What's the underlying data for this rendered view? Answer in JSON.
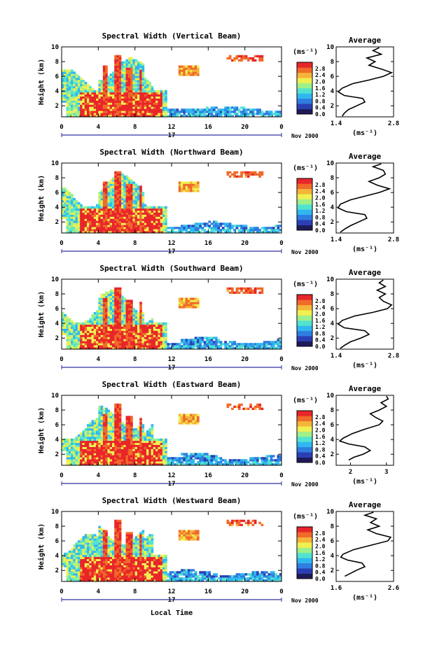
{
  "figure": {
    "xlabel": "Local Time",
    "date_label": "Nov 2000",
    "day_label": "17",
    "avg_title": "Average",
    "avg_xlabel": "(ms⁻¹)",
    "ylabel": "Height (km)",
    "colorbar_unit": "(ms⁻¹)",
    "colorbar_ticks": [
      "0.0",
      "0.4",
      "0.8",
      "1.2",
      "1.6",
      "2.0",
      "2.4",
      "2.8"
    ],
    "colormap": [
      "#1e1b5a",
      "#2b3fb4",
      "#2f7de0",
      "#31b7ef",
      "#52e3d0",
      "#9ff08a",
      "#f0f050",
      "#f5b43a",
      "#f06a2a",
      "#e8262a"
    ]
  },
  "chart_data": [
    {
      "type": "heatmap",
      "title": "Spectral Width (Vertical Beam)",
      "x_ticks": [
        "0",
        "4",
        "8",
        "12",
        "16",
        "20",
        "0"
      ],
      "xlim": [
        0,
        24
      ],
      "y_ticks": [
        "2",
        "4",
        "6",
        "8",
        "10"
      ],
      "ylim": [
        0.5,
        10
      ],
      "avg": {
        "x_ticks": [
          "1.4",
          "2.8"
        ],
        "xlim": [
          1.4,
          2.8
        ],
        "y_ticks": [
          "2",
          "4",
          "6",
          "8",
          "10"
        ],
        "ylim": [
          0.5,
          10
        ],
        "profile": [
          {
            "h": 0.6,
            "w": 1.55
          },
          {
            "h": 1.0,
            "w": 1.6
          },
          {
            "h": 1.5,
            "w": 1.7
          },
          {
            "h": 2.0,
            "w": 1.9
          },
          {
            "h": 2.5,
            "w": 2.1
          },
          {
            "h": 3.0,
            "w": 2.05
          },
          {
            "h": 3.4,
            "w": 1.6
          },
          {
            "h": 3.9,
            "w": 1.45
          },
          {
            "h": 4.4,
            "w": 1.55
          },
          {
            "h": 5.0,
            "w": 1.8
          },
          {
            "h": 5.5,
            "w": 2.2
          },
          {
            "h": 6.0,
            "w": 2.55
          },
          {
            "h": 6.5,
            "w": 2.75
          },
          {
            "h": 7.0,
            "w": 2.5
          },
          {
            "h": 7.5,
            "w": 2.2
          },
          {
            "h": 8.0,
            "w": 2.35
          },
          {
            "h": 8.5,
            "w": 2.15
          },
          {
            "h": 9.0,
            "w": 2.5
          },
          {
            "h": 9.5,
            "w": 2.3
          },
          {
            "h": 9.9,
            "w": 2.45
          }
        ]
      }
    },
    {
      "type": "heatmap",
      "title": "Spectral Width (Northward Beam)",
      "x_ticks": [
        "0",
        "4",
        "8",
        "12",
        "16",
        "20",
        "0"
      ],
      "xlim": [
        0,
        24
      ],
      "y_ticks": [
        "2",
        "4",
        "6",
        "8",
        "10"
      ],
      "ylim": [
        0.5,
        10
      ],
      "avg": {
        "x_ticks": [
          "1.4",
          "2.8"
        ],
        "xlim": [
          1.4,
          2.8
        ],
        "y_ticks": [
          "2",
          "4",
          "6",
          "8",
          "10"
        ],
        "ylim": [
          0.5,
          10
        ],
        "profile": [
          {
            "h": 0.6,
            "w": 1.5
          },
          {
            "h": 1.0,
            "w": 1.6
          },
          {
            "h": 1.5,
            "w": 1.75
          },
          {
            "h": 2.0,
            "w": 1.95
          },
          {
            "h": 2.5,
            "w": 2.15
          },
          {
            "h": 3.0,
            "w": 2.1
          },
          {
            "h": 3.4,
            "w": 1.65
          },
          {
            "h": 3.9,
            "w": 1.45
          },
          {
            "h": 4.4,
            "w": 1.5
          },
          {
            "h": 5.0,
            "w": 1.75
          },
          {
            "h": 5.5,
            "w": 2.1
          },
          {
            "h": 6.0,
            "w": 2.45
          },
          {
            "h": 6.5,
            "w": 2.7
          },
          {
            "h": 7.0,
            "w": 2.4
          },
          {
            "h": 7.5,
            "w": 2.2
          },
          {
            "h": 8.0,
            "w": 2.45
          },
          {
            "h": 8.5,
            "w": 2.6
          },
          {
            "h": 9.0,
            "w": 2.55
          },
          {
            "h": 9.5,
            "w": 2.3
          },
          {
            "h": 9.9,
            "w": 2.5
          }
        ]
      }
    },
    {
      "type": "heatmap",
      "title": "Spectral Width (Southward Beam)",
      "x_ticks": [
        "0",
        "4",
        "8",
        "12",
        "16",
        "20",
        "0"
      ],
      "xlim": [
        0,
        24
      ],
      "y_ticks": [
        "2",
        "4",
        "6",
        "8",
        "10"
      ],
      "ylim": [
        0.5,
        10
      ],
      "avg": {
        "x_ticks": [
          "1.4",
          "2.8"
        ],
        "xlim": [
          1.4,
          2.8
        ],
        "y_ticks": [
          "2",
          "4",
          "6",
          "8",
          "10"
        ],
        "ylim": [
          0.5,
          10
        ],
        "profile": [
          {
            "h": 0.6,
            "w": 1.5
          },
          {
            "h": 1.0,
            "w": 1.6
          },
          {
            "h": 1.5,
            "w": 1.75
          },
          {
            "h": 2.0,
            "w": 2.0
          },
          {
            "h": 2.5,
            "w": 2.2
          },
          {
            "h": 3.0,
            "w": 2.1
          },
          {
            "h": 3.4,
            "w": 1.6
          },
          {
            "h": 3.9,
            "w": 1.45
          },
          {
            "h": 4.4,
            "w": 1.55
          },
          {
            "h": 5.0,
            "w": 1.85
          },
          {
            "h": 5.5,
            "w": 2.3
          },
          {
            "h": 6.0,
            "w": 2.65
          },
          {
            "h": 6.5,
            "w": 2.75
          },
          {
            "h": 7.0,
            "w": 2.55
          },
          {
            "h": 7.5,
            "w": 2.45
          },
          {
            "h": 8.0,
            "w": 2.6
          },
          {
            "h": 8.5,
            "w": 2.4
          },
          {
            "h": 9.0,
            "w": 2.6
          },
          {
            "h": 9.5,
            "w": 2.45
          },
          {
            "h": 9.9,
            "w": 2.55
          }
        ]
      }
    },
    {
      "type": "heatmap",
      "title": "Spectral Width (Eastward Beam)",
      "x_ticks": [
        "0",
        "4",
        "8",
        "12",
        "16",
        "20",
        "0"
      ],
      "xlim": [
        0,
        24
      ],
      "y_ticks": [
        "2",
        "4",
        "6",
        "8",
        "10"
      ],
      "ylim": [
        0.5,
        10
      ],
      "avg": {
        "x_ticks": [
          "2",
          "3"
        ],
        "xlim": [
          1.6,
          3.2
        ],
        "y_ticks": [
          "2",
          "4",
          "6",
          "8",
          "10"
        ],
        "ylim": [
          0.5,
          10
        ],
        "profile": [
          {
            "h": 1.2,
            "w": 1.95
          },
          {
            "h": 1.6,
            "w": 2.1
          },
          {
            "h": 2.0,
            "w": 2.35
          },
          {
            "h": 2.5,
            "w": 2.55
          },
          {
            "h": 3.0,
            "w": 2.4
          },
          {
            "h": 3.4,
            "w": 1.95
          },
          {
            "h": 3.8,
            "w": 1.7
          },
          {
            "h": 4.2,
            "w": 1.8
          },
          {
            "h": 4.8,
            "w": 2.05
          },
          {
            "h": 5.4,
            "w": 2.4
          },
          {
            "h": 6.0,
            "w": 2.8
          },
          {
            "h": 6.5,
            "w": 2.9
          },
          {
            "h": 7.0,
            "w": 2.7
          },
          {
            "h": 7.5,
            "w": 2.55
          },
          {
            "h": 8.0,
            "w": 2.8
          },
          {
            "h": 8.5,
            "w": 3.0
          },
          {
            "h": 9.0,
            "w": 2.85
          },
          {
            "h": 9.5,
            "w": 3.05
          },
          {
            "h": 9.9,
            "w": 3.0
          }
        ]
      }
    },
    {
      "type": "heatmap",
      "title": "Spectral Width (Westward Beam)",
      "x_ticks": [
        "0",
        "4",
        "8",
        "12",
        "16",
        "20",
        "0"
      ],
      "xlim": [
        0,
        24
      ],
      "y_ticks": [
        "2",
        "4",
        "6",
        "8",
        "10"
      ],
      "ylim": [
        0.5,
        10
      ],
      "avg": {
        "x_ticks": [
          "1.6",
          "2.6"
        ],
        "xlim": [
          1.6,
          2.6
        ],
        "y_ticks": [
          "2",
          "4",
          "6",
          "8",
          "10"
        ],
        "ylim": [
          0.5,
          10
        ],
        "profile": [
          {
            "h": 1.2,
            "w": 1.75
          },
          {
            "h": 1.6,
            "w": 1.85
          },
          {
            "h": 2.0,
            "w": 1.95
          },
          {
            "h": 2.5,
            "w": 2.1
          },
          {
            "h": 3.0,
            "w": 2.05
          },
          {
            "h": 3.4,
            "w": 1.8
          },
          {
            "h": 3.8,
            "w": 1.68
          },
          {
            "h": 4.2,
            "w": 1.72
          },
          {
            "h": 4.8,
            "w": 1.9
          },
          {
            "h": 5.4,
            "w": 2.2
          },
          {
            "h": 6.0,
            "w": 2.5
          },
          {
            "h": 6.5,
            "w": 2.55
          },
          {
            "h": 7.0,
            "w": 2.3
          },
          {
            "h": 7.5,
            "w": 2.15
          },
          {
            "h": 8.0,
            "w": 2.35
          },
          {
            "h": 8.5,
            "w": 2.2
          },
          {
            "h": 9.0,
            "w": 2.3
          },
          {
            "h": 9.5,
            "w": 2.1
          },
          {
            "h": 9.9,
            "w": 2.25
          }
        ]
      }
    }
  ]
}
